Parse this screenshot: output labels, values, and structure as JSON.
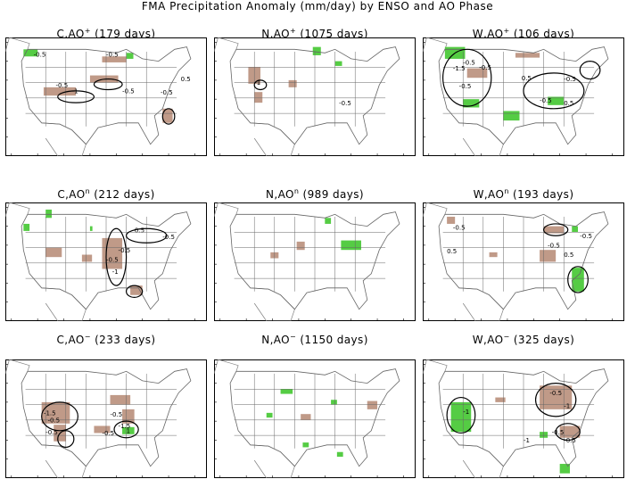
{
  "title": "FMA Precipitation Anomaly (mm/day) by ENSO and AO Phase",
  "colors": {
    "wet": "#55cc44",
    "dry": "#c09a88",
    "coast": "#808080",
    "frame": "#000000",
    "border": "#666666"
  },
  "chart_data": {
    "type": "map",
    "panels": [
      {
        "label": "C,AO",
        "sup": "+",
        "days": "(179 days)",
        "wet": [
          [
            0.09,
            0.1,
            0.07,
            0.06
          ],
          [
            0.6,
            0.13,
            0.035,
            0.05
          ]
        ],
        "dry": [
          [
            0.19,
            0.42,
            0.16,
            0.07
          ],
          [
            0.42,
            0.32,
            0.14,
            0.06
          ],
          [
            0.48,
            0.16,
            0.12,
            0.05
          ],
          [
            0.78,
            0.6,
            0.05,
            0.12
          ]
        ],
        "contours": [
          [
            0.26,
            0.45,
            0.18,
            0.1
          ],
          [
            0.44,
            0.35,
            0.14,
            0.09
          ],
          [
            0.78,
            0.6,
            0.06,
            0.13
          ]
        ],
        "labels": [
          [
            "-0.5",
            0.14,
            0.16
          ],
          [
            "-0.5",
            0.5,
            0.16
          ],
          [
            "-0.5",
            0.25,
            0.42
          ],
          [
            "-1",
            0.33,
            0.47
          ],
          [
            "-0.5",
            0.58,
            0.47
          ],
          [
            "0.5",
            0.87,
            0.37
          ],
          [
            "-0.5",
            0.77,
            0.48
          ]
        ]
      },
      {
        "label": "N,AO",
        "sup": "+",
        "days": "(1075 days)",
        "wet": [
          [
            0.49,
            0.08,
            0.04,
            0.07
          ],
          [
            0.6,
            0.2,
            0.035,
            0.04
          ]
        ],
        "dry": [
          [
            0.17,
            0.25,
            0.06,
            0.14
          ],
          [
            0.2,
            0.46,
            0.04,
            0.09
          ],
          [
            0.37,
            0.36,
            0.04,
            0.06
          ]
        ],
        "contours": [
          [
            0.2,
            0.36,
            0.06,
            0.08
          ]
        ],
        "labels": [
          [
            "-1",
            0.2,
            0.4
          ],
          [
            "-0.5",
            0.62,
            0.57
          ]
        ]
      },
      {
        "label": "W,AO",
        "sup": "+",
        "days": "(106 days)",
        "wet": [
          [
            0.11,
            0.08,
            0.1,
            0.1
          ],
          [
            0.2,
            0.52,
            0.08,
            0.07
          ],
          [
            0.4,
            0.62,
            0.08,
            0.08
          ],
          [
            0.62,
            0.5,
            0.08,
            0.07
          ]
        ],
        "dry": [
          [
            0.22,
            0.26,
            0.1,
            0.08
          ],
          [
            0.46,
            0.13,
            0.12,
            0.04
          ]
        ],
        "contours": [
          [
            0.1,
            0.1,
            0.24,
            0.48
          ],
          [
            0.5,
            0.3,
            0.3,
            0.3
          ],
          [
            0.78,
            0.2,
            0.1,
            0.15
          ]
        ],
        "labels": [
          [
            "-0.5",
            0.2,
            0.23
          ],
          [
            "-1.5",
            0.15,
            0.28
          ],
          [
            "-0.5",
            0.28,
            0.27
          ],
          [
            "-0.5",
            0.18,
            0.43
          ],
          [
            "0.5",
            0.49,
            0.36
          ],
          [
            "-0.5",
            0.7,
            0.37
          ],
          [
            "-0.5",
            0.58,
            0.55
          ],
          [
            "0.5",
            0.7,
            0.57
          ]
        ]
      },
      {
        "label": "C,AO",
        "sup": "n",
        "days": "(212 days)",
        "wet": [
          [
            0.09,
            0.18,
            0.03,
            0.06
          ],
          [
            0.2,
            0.06,
            0.03,
            0.07
          ],
          [
            0.42,
            0.2,
            0.012,
            0.04
          ]
        ],
        "dry": [
          [
            0.2,
            0.38,
            0.08,
            0.08
          ],
          [
            0.38,
            0.44,
            0.05,
            0.06
          ],
          [
            0.48,
            0.3,
            0.1,
            0.26
          ],
          [
            0.62,
            0.7,
            0.06,
            0.08
          ]
        ],
        "contours": [
          [
            0.5,
            0.22,
            0.1,
            0.48
          ],
          [
            0.6,
            0.7,
            0.08,
            0.1
          ],
          [
            0.6,
            0.22,
            0.2,
            0.12
          ]
        ],
        "labels": [
          [
            "-0.5",
            0.63,
            0.25
          ],
          [
            "-0.5",
            0.78,
            0.31
          ],
          [
            "-0.5",
            0.56,
            0.42
          ],
          [
            "-0.5",
            0.5,
            0.5
          ],
          [
            "-1",
            0.53,
            0.6
          ]
        ]
      },
      {
        "label": "N,AO",
        "sup": "n",
        "days": "(989 days)",
        "wet": [
          [
            0.63,
            0.32,
            0.1,
            0.08
          ],
          [
            0.55,
            0.13,
            0.03,
            0.05
          ]
        ],
        "dry": [
          [
            0.28,
            0.42,
            0.04,
            0.05
          ],
          [
            0.41,
            0.33,
            0.04,
            0.07
          ]
        ],
        "contours": [],
        "labels": []
      },
      {
        "label": "W,AO",
        "sup": "n",
        "days": "(193 days)",
        "wet": [
          [
            0.74,
            0.55,
            0.06,
            0.2
          ],
          [
            0.74,
            0.2,
            0.03,
            0.05
          ]
        ],
        "dry": [
          [
            0.12,
            0.12,
            0.04,
            0.06
          ],
          [
            0.33,
            0.42,
            0.04,
            0.04
          ],
          [
            0.6,
            0.2,
            0.1,
            0.06
          ],
          [
            0.58,
            0.4,
            0.08,
            0.1
          ]
        ],
        "contours": [
          [
            0.72,
            0.54,
            0.1,
            0.22
          ],
          [
            0.6,
            0.18,
            0.12,
            0.1
          ]
        ],
        "labels": [
          [
            "-0.5",
            0.15,
            0.23
          ],
          [
            "0.5",
            0.12,
            0.43
          ],
          [
            "0.5",
            0.7,
            0.46
          ],
          [
            "-0.5",
            0.78,
            0.3
          ],
          [
            "-0.5",
            0.62,
            0.38
          ]
        ]
      },
      {
        "label": "C,AO",
        "sup": "−",
        "days": "(233 days)",
        "wet": [
          [
            0.58,
            0.57,
            0.06,
            0.06
          ]
        ],
        "dry": [
          [
            0.18,
            0.36,
            0.14,
            0.18
          ],
          [
            0.52,
            0.3,
            0.1,
            0.08
          ],
          [
            0.44,
            0.56,
            0.08,
            0.06
          ],
          [
            0.58,
            0.42,
            0.06,
            0.12
          ],
          [
            0.24,
            0.55,
            0.06,
            0.14
          ]
        ],
        "contours": [
          [
            0.18,
            0.36,
            0.18,
            0.24
          ],
          [
            0.54,
            0.52,
            0.12,
            0.14
          ],
          [
            0.26,
            0.6,
            0.08,
            0.14
          ]
        ],
        "labels": [
          [
            "-1.5",
            0.19,
            0.47
          ],
          [
            "-0.5",
            0.21,
            0.53
          ],
          [
            "-0.5",
            0.52,
            0.48
          ],
          [
            "-0.5",
            0.2,
            0.63
          ],
          [
            "-0.5",
            0.48,
            0.64
          ],
          [
            "-1.5",
            0.56,
            0.58
          ],
          [
            "1",
            0.6,
            0.62
          ]
        ]
      },
      {
        "label": "N,AO",
        "sup": "−",
        "days": "(1150 days)",
        "wet": [
          [
            0.33,
            0.25,
            0.06,
            0.04
          ],
          [
            0.26,
            0.45,
            0.03,
            0.04
          ],
          [
            0.58,
            0.34,
            0.03,
            0.04
          ],
          [
            0.44,
            0.7,
            0.03,
            0.04
          ],
          [
            0.61,
            0.78,
            0.03,
            0.04
          ]
        ],
        "dry": [
          [
            0.76,
            0.35,
            0.05,
            0.07
          ],
          [
            0.43,
            0.46,
            0.05,
            0.05
          ]
        ],
        "contours": [],
        "labels": []
      },
      {
        "label": "W,AO",
        "sup": "−",
        "days": "(325 days)",
        "wet": [
          [
            0.14,
            0.36,
            0.1,
            0.25
          ],
          [
            0.58,
            0.61,
            0.04,
            0.05
          ],
          [
            0.68,
            0.88,
            0.05,
            0.08
          ]
        ],
        "dry": [
          [
            0.36,
            0.32,
            0.05,
            0.04
          ],
          [
            0.58,
            0.22,
            0.16,
            0.2
          ],
          [
            0.68,
            0.56,
            0.1,
            0.1
          ]
        ],
        "contours": [
          [
            0.12,
            0.32,
            0.14,
            0.3
          ],
          [
            0.56,
            0.2,
            0.2,
            0.28
          ],
          [
            0.66,
            0.54,
            0.12,
            0.14
          ]
        ],
        "labels": [
          [
            "-1",
            0.2,
            0.46
          ],
          [
            "-0.5",
            0.63,
            0.3
          ],
          [
            "-1",
            0.7,
            0.41
          ],
          [
            "-0.5",
            0.64,
            0.63
          ],
          [
            "-0.5",
            0.7,
            0.7
          ],
          [
            "-1",
            0.5,
            0.7
          ]
        ]
      }
    ]
  }
}
